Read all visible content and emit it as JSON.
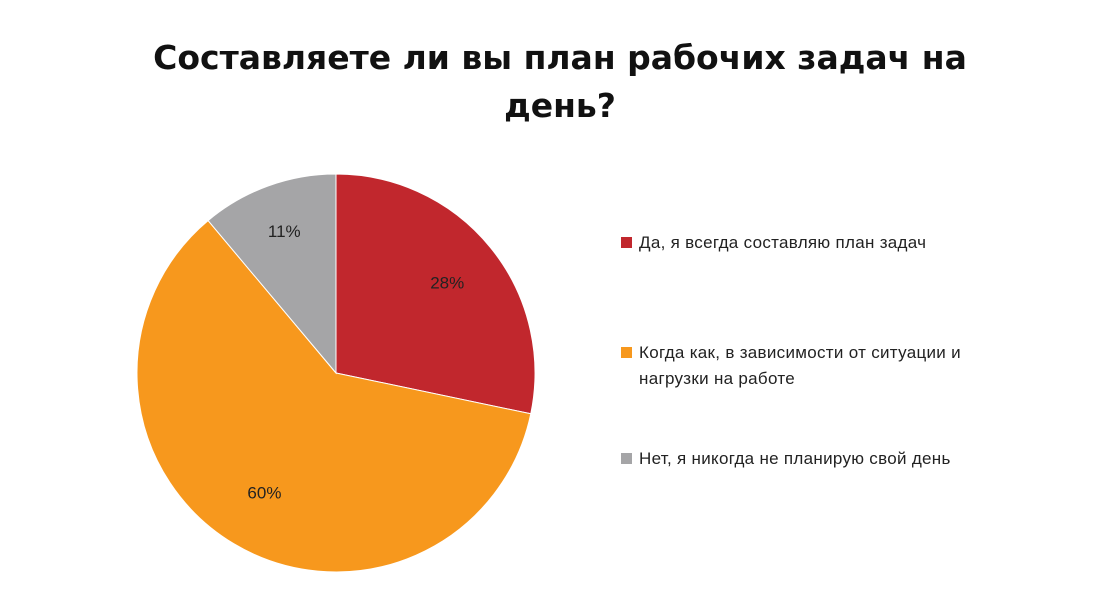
{
  "chart_data": {
    "type": "pie",
    "title": "Составляете ли вы план рабочих задач на день?",
    "title_lines": [
      "Составляете ли вы план рабочих задач на",
      "день?"
    ],
    "slices": [
      {
        "label": "Да, я всегда составляю план задач",
        "value": 28,
        "value_label": "28%",
        "color": "#c1272d"
      },
      {
        "label": "Когда как, в зависимости от ситуации и нагрузки на работе",
        "value": 60,
        "value_label": "60%",
        "color": "#f7981d"
      },
      {
        "label": "Нет, я никогда не планирую свой день",
        "value": 11,
        "value_label": "11%",
        "color": "#a5a5a7"
      }
    ],
    "legend_position": "right",
    "start_angle": "12 o'clock",
    "direction": "clockwise"
  },
  "legend": {
    "items": [
      {
        "lines": [
          "Да, я всегда составляю план задач"
        ],
        "color": "#c1272d"
      },
      {
        "lines": [
          "Когда как, в зависимости от ситуации и",
          "нагрузки на работе"
        ],
        "color": "#f7981d"
      },
      {
        "lines": [
          "Нет, я никогда не планирую свой день"
        ],
        "color": "#a5a5a7"
      }
    ]
  }
}
